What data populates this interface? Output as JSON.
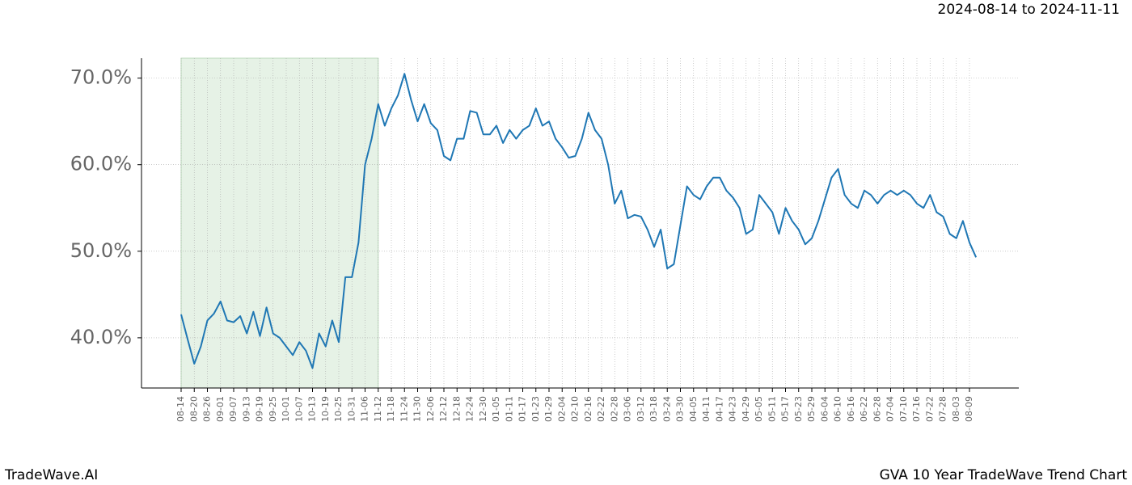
{
  "chart_data": {
    "type": "line",
    "subtitle": "2024-08-14 to 2024-11-11",
    "brand": "TradeWave.AI",
    "title": "GVA 10 Year TradeWave Trend Chart",
    "categories": [
      "08-14",
      null,
      "08-20",
      null,
      "08-26",
      null,
      "09-01",
      null,
      "09-07",
      null,
      "09-13",
      null,
      "09-19",
      null,
      "09-25",
      null,
      "10-01",
      null,
      "10-07",
      null,
      "10-13",
      null,
      "10-19",
      null,
      "10-25",
      null,
      "10-31",
      null,
      "11-06",
      null,
      "11-12",
      null,
      "11-18",
      null,
      "11-24",
      null,
      "11-30",
      null,
      "12-06",
      null,
      "12-12",
      null,
      "12-18",
      null,
      "12-24",
      null,
      "12-30",
      null,
      "01-05",
      null,
      "01-11",
      null,
      "01-17",
      null,
      "01-23",
      null,
      "01-29",
      null,
      "02-04",
      null,
      "02-10",
      null,
      "02-16",
      null,
      "02-22",
      null,
      "02-28",
      null,
      "03-06",
      null,
      "03-12",
      null,
      "03-18",
      null,
      "03-24",
      null,
      "03-30",
      null,
      "04-05",
      null,
      "04-11",
      null,
      "04-17",
      null,
      "04-23",
      null,
      "04-29",
      null,
      "05-05",
      null,
      "05-11",
      null,
      "05-17",
      null,
      "05-23",
      null,
      "05-29",
      null,
      "06-04",
      null,
      "06-10",
      null,
      "06-16",
      null,
      "06-22",
      null,
      "06-28",
      null,
      "07-04",
      null,
      "07-10",
      null,
      "07-16",
      null,
      "07-22",
      null,
      "07-28",
      null,
      "08-03",
      null,
      "08-09",
      null
    ],
    "values": [
      42.7,
      39.8,
      37.0,
      39.0,
      42.0,
      42.8,
      44.2,
      42.0,
      41.8,
      42.5,
      40.5,
      43.0,
      40.2,
      43.5,
      40.5,
      40.0,
      39.0,
      38.0,
      39.5,
      38.5,
      36.5,
      40.5,
      39.0,
      42.0,
      39.5,
      47.0,
      47.0,
      51.0,
      60.0,
      63.0,
      67.0,
      64.5,
      66.5,
      68.0,
      70.5,
      67.5,
      65.0,
      67.0,
      64.8,
      64.0,
      61.0,
      60.5,
      63.0,
      63.0,
      66.2,
      66.0,
      63.5,
      63.5,
      64.5,
      62.5,
      64.0,
      63.0,
      64.0,
      64.5,
      66.5,
      64.5,
      65.0,
      63.0,
      62.0,
      60.8,
      61.0,
      63.0,
      66.0,
      64.0,
      63.0,
      60.0,
      55.5,
      57.0,
      53.8,
      54.2,
      54.0,
      52.5,
      50.5,
      52.5,
      48.0,
      48.5,
      53.0,
      57.5,
      56.5,
      56.0,
      57.5,
      58.5,
      58.5,
      57.0,
      56.2,
      55.0,
      52.0,
      52.5,
      56.5,
      55.5,
      54.5,
      52.0,
      55.0,
      53.5,
      52.5,
      50.8,
      51.5,
      53.5,
      56.0,
      58.5,
      59.5,
      56.5,
      55.5,
      55.0,
      57.0,
      56.5,
      55.5,
      56.5,
      57.0,
      56.5,
      57.0,
      56.5,
      55.5,
      55.0,
      56.5,
      54.5,
      54.0,
      52.0,
      51.5,
      53.5,
      51.0,
      49.3
    ],
    "color": "#1f77b4",
    "highlight": [
      "08-14",
      "11-12"
    ],
    "highlight_color": "#e6f2e6",
    "ylim": [
      34.2,
      72.3
    ],
    "yticks": [
      {
        "value": 40,
        "label": "40.0%"
      },
      {
        "value": 50,
        "label": "50.0%"
      },
      {
        "value": 60,
        "label": "60.0%"
      },
      {
        "value": 70,
        "label": "70.0%"
      }
    ],
    "grid": true
  }
}
